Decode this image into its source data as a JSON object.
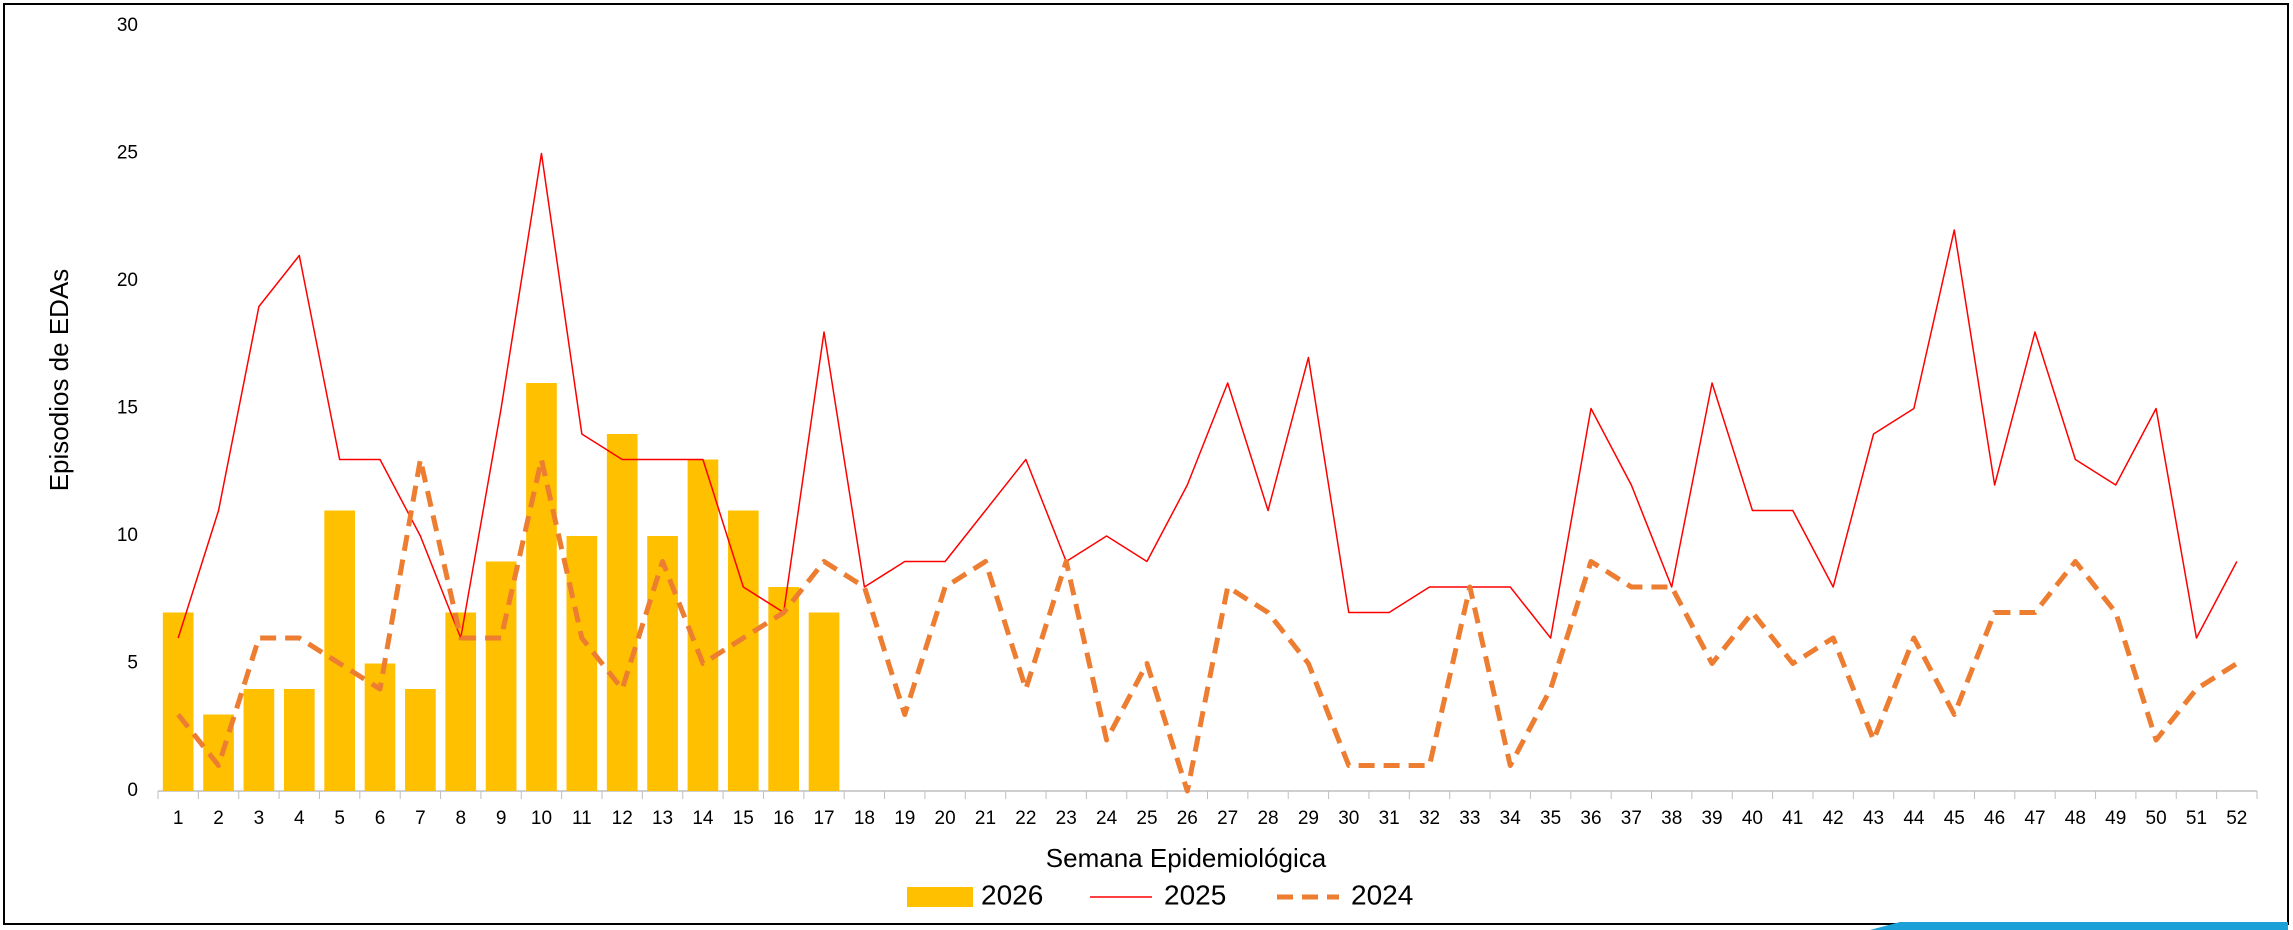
{
  "chart_data": {
    "type": "bar-line",
    "x_label": "Semana Epidemiológica",
    "y_label": "Episodios de EDAs",
    "categories": [
      1,
      2,
      3,
      4,
      5,
      6,
      7,
      8,
      9,
      10,
      11,
      12,
      13,
      14,
      15,
      16,
      17,
      18,
      19,
      20,
      21,
      22,
      23,
      24,
      25,
      26,
      27,
      28,
      29,
      30,
      31,
      32,
      33,
      34,
      35,
      36,
      37,
      38,
      39,
      40,
      41,
      42,
      43,
      44,
      45,
      46,
      47,
      48,
      49,
      50,
      51,
      52
    ],
    "ylim": [
      0,
      30
    ],
    "yticks": [
      0,
      5,
      10,
      15,
      20,
      25,
      30
    ],
    "series": [
      {
        "name": "2026",
        "type": "bar",
        "color": "#ffc000",
        "values": [
          7,
          3,
          4,
          4,
          11,
          5,
          4,
          7,
          9,
          16,
          10,
          14,
          10,
          13,
          11,
          8,
          7,
          null,
          null,
          null,
          null,
          null,
          null,
          null,
          null,
          null,
          null,
          null,
          null,
          null,
          null,
          null,
          null,
          null,
          null,
          null,
          null,
          null,
          null,
          null,
          null,
          null,
          null,
          null,
          null,
          null,
          null,
          null,
          null,
          null,
          null,
          null
        ]
      },
      {
        "name": "2025",
        "type": "line",
        "color": "#ff0000",
        "dashed": false,
        "values": [
          6,
          11,
          19,
          21,
          13,
          13,
          10,
          6,
          15,
          25,
          14,
          13,
          13,
          13,
          8,
          7,
          18,
          8,
          9,
          9,
          11,
          13,
          9,
          10,
          9,
          12,
          16,
          11,
          17,
          7,
          7,
          8,
          8,
          8,
          6,
          15,
          12,
          8,
          16,
          11,
          11,
          8,
          14,
          15,
          22,
          12,
          18,
          13,
          12,
          15,
          6,
          9
        ]
      },
      {
        "name": "2024",
        "type": "line",
        "color": "#ed7d31",
        "dashed": true,
        "values": [
          3,
          1,
          6,
          6,
          5,
          4,
          13,
          6,
          6,
          13,
          6,
          4,
          9,
          5,
          6,
          7,
          9,
          8,
          3,
          8,
          9,
          4,
          9,
          2,
          5,
          0,
          8,
          7,
          5,
          1,
          1,
          1,
          8,
          1,
          4,
          9,
          8,
          8,
          5,
          7,
          5,
          6,
          2,
          6,
          3,
          7,
          7,
          9,
          7,
          2,
          4,
          5
        ]
      }
    ]
  }
}
